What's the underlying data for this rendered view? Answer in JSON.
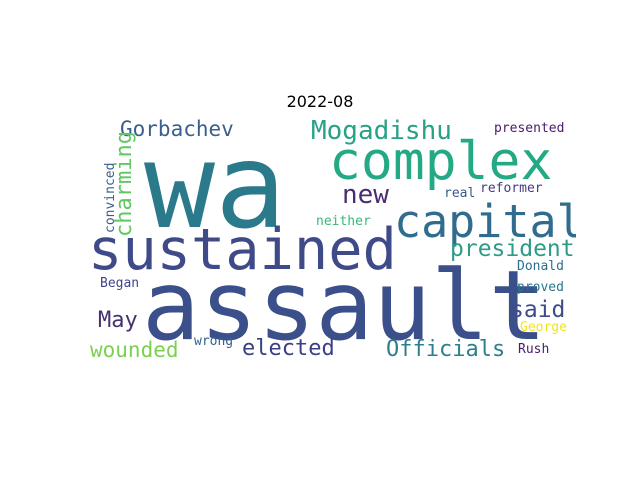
{
  "title": "2022-08",
  "words": [
    {
      "text": "wa",
      "color": "#2a7a8c"
    },
    {
      "text": "assault",
      "color": "#3b4f8a"
    },
    {
      "text": "sustained",
      "color": "#3f4a89"
    },
    {
      "text": "complex",
      "color": "#24a985"
    },
    {
      "text": "capital",
      "color": "#2f6c8e"
    },
    {
      "text": "Mogadishu",
      "color": "#27a287"
    },
    {
      "text": "Gorbachev",
      "color": "#3b5f8d"
    },
    {
      "text": "charming",
      "color": "#5fc862"
    },
    {
      "text": "new",
      "color": "#4b2d6f"
    },
    {
      "text": "president",
      "color": "#2d9b88"
    },
    {
      "text": "said",
      "color": "#3f4b8a"
    },
    {
      "text": "May",
      "color": "#46316f"
    },
    {
      "text": "wounded",
      "color": "#7ad151"
    },
    {
      "text": "elected",
      "color": "#3b3f85"
    },
    {
      "text": "Officials",
      "color": "#2d7f8e"
    },
    {
      "text": "presented",
      "color": "#471b6c"
    },
    {
      "text": "reformer",
      "color": "#443983"
    },
    {
      "text": "real",
      "color": "#38598c"
    },
    {
      "text": "convinced",
      "color": "#3b5d8d"
    },
    {
      "text": "neither",
      "color": "#38b977"
    },
    {
      "text": "Donald",
      "color": "#2f6f8e"
    },
    {
      "text": "proved",
      "color": "#2a768e"
    },
    {
      "text": "Began",
      "color": "#414587"
    },
    {
      "text": "wrong",
      "color": "#355e8d"
    },
    {
      "text": "George",
      "color": "#f1e51d"
    },
    {
      "text": "Rush",
      "color": "#481d6f"
    }
  ]
}
